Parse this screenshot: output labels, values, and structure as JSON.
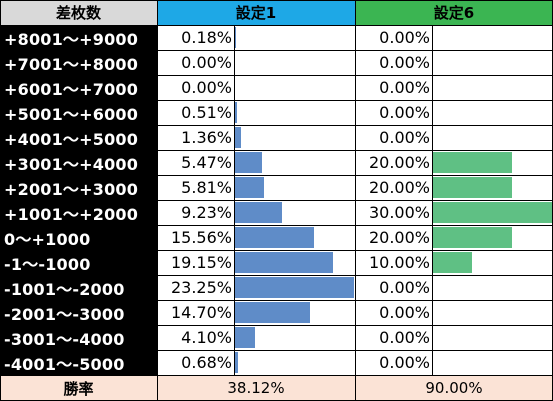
{
  "chart_data": {
    "type": "table",
    "header": {
      "label_col": "差枚数",
      "series1": "設定1",
      "series2": "設定6"
    },
    "rows": [
      {
        "label": "+8001～+9000",
        "s1": "0.18%",
        "s2": "0.00%",
        "v1": 0.18,
        "v2": 0.0
      },
      {
        "label": "+7001～+8000",
        "s1": "0.00%",
        "s2": "0.00%",
        "v1": 0.0,
        "v2": 0.0
      },
      {
        "label": "+6001～+7000",
        "s1": "0.00%",
        "s2": "0.00%",
        "v1": 0.0,
        "v2": 0.0
      },
      {
        "label": "+5001～+6000",
        "s1": "0.51%",
        "s2": "0.00%",
        "v1": 0.51,
        "v2": 0.0
      },
      {
        "label": "+4001～+5000",
        "s1": "1.36%",
        "s2": "0.00%",
        "v1": 1.36,
        "v2": 0.0
      },
      {
        "label": "+3001～+4000",
        "s1": "5.47%",
        "s2": "20.00%",
        "v1": 5.47,
        "v2": 20.0
      },
      {
        "label": "+2001～+3000",
        "s1": "5.81%",
        "s2": "20.00%",
        "v1": 5.81,
        "v2": 20.0
      },
      {
        "label": "+1001～+2000",
        "s1": "9.23%",
        "s2": "30.00%",
        "v1": 9.23,
        "v2": 30.0
      },
      {
        "label": "0～+1000",
        "s1": "15.56%",
        "s2": "20.00%",
        "v1": 15.56,
        "v2": 20.0
      },
      {
        "label": "-1～-1000",
        "s1": "19.15%",
        "s2": "10.00%",
        "v1": 19.15,
        "v2": 10.0
      },
      {
        "label": "-1001～-2000",
        "s1": "23.25%",
        "s2": "0.00%",
        "v1": 23.25,
        "v2": 0.0
      },
      {
        "label": "-2001～-3000",
        "s1": "14.70%",
        "s2": "0.00%",
        "v1": 14.7,
        "v2": 0.0
      },
      {
        "label": "-3001～-4000",
        "s1": "4.10%",
        "s2": "0.00%",
        "v1": 4.1,
        "v2": 0.0
      },
      {
        "label": "-4001～-5000",
        "s1": "0.68%",
        "s2": "0.00%",
        "v1": 0.68,
        "v2": 0.0
      }
    ],
    "footer": {
      "label": "勝率",
      "s1": "38.12%",
      "s2": "90.00%"
    },
    "colors": {
      "header_label_bg": "#d9d9d9",
      "header_s1_bg": "#1ea8e6",
      "header_s2_bg": "#3bb552",
      "bar_s1": "#5f8cc8",
      "bar_s2": "#5fc084",
      "footer_bg": "#fbe3d6",
      "row_label_bg": "#000000"
    }
  }
}
